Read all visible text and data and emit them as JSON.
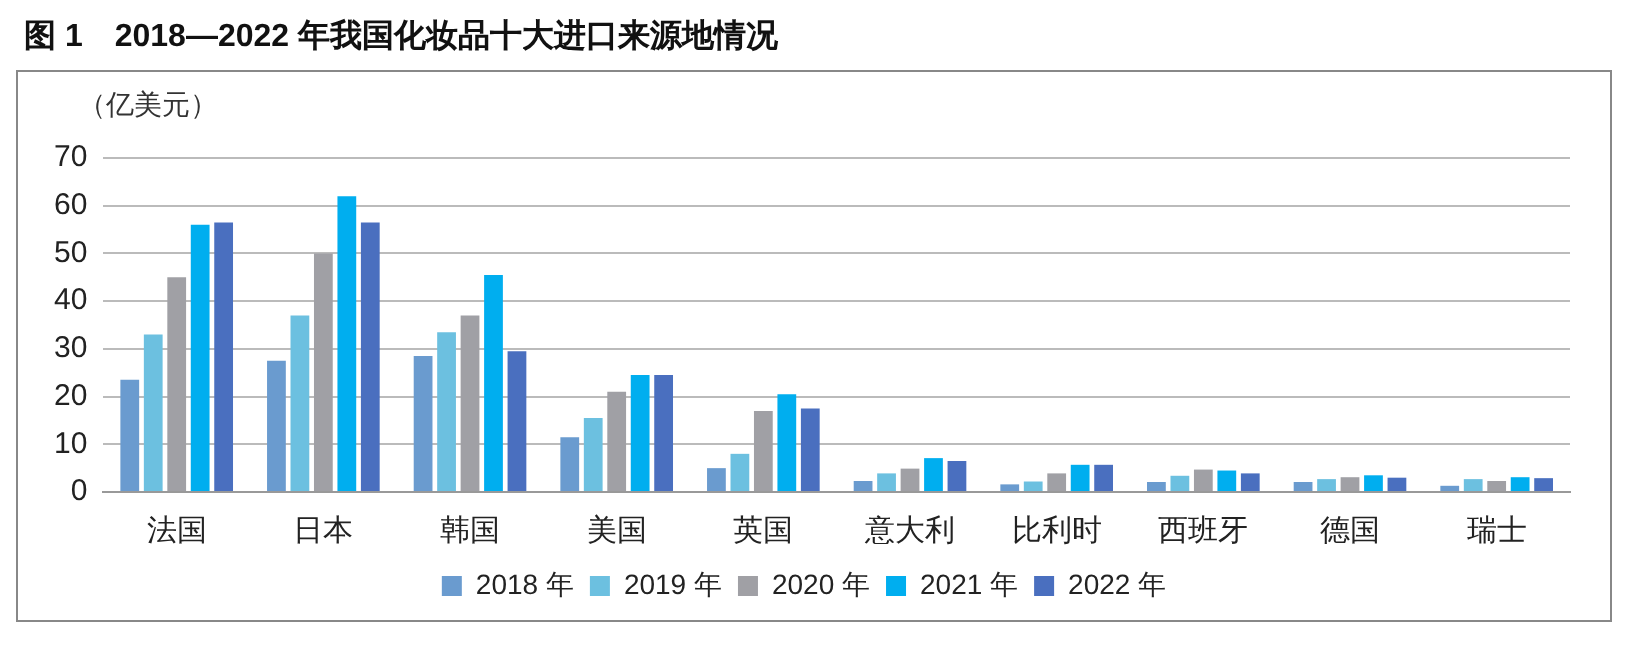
{
  "chart_data": {
    "type": "bar",
    "title": "图 1　2018—2022 年我国化妆品十大进口来源地情况",
    "ylabel": "（亿美元）",
    "categories": [
      "法国",
      "日本",
      "韩国",
      "美国",
      "英国",
      "意大利",
      "比利时",
      "西班牙",
      "德国",
      "瑞士"
    ],
    "series": [
      {
        "name": "2018 年",
        "color": "#6a9bcf",
        "values": [
          23.5,
          27.5,
          28.5,
          11.5,
          5,
          2.3,
          1.6,
          2.1,
          2.1,
          1.3
        ]
      },
      {
        "name": "2019 年",
        "color": "#6cc0e0",
        "values": [
          33,
          37,
          33.5,
          15.5,
          8,
          3.9,
          2.2,
          3.4,
          2.7,
          2.7
        ]
      },
      {
        "name": "2020 年",
        "color": "#a0a0a5",
        "values": [
          45,
          50,
          37,
          21,
          17,
          4.9,
          3.9,
          4.7,
          3.1,
          2.3
        ]
      },
      {
        "name": "2021 年",
        "color": "#00aeef",
        "values": [
          56,
          62,
          45.5,
          24.5,
          20.5,
          7.1,
          5.7,
          4.5,
          3.5,
          3.1
        ]
      },
      {
        "name": "2022 年",
        "color": "#4a6fbf",
        "values": [
          56.5,
          56.5,
          29.5,
          24.5,
          17.5,
          6.5,
          5.7,
          3.9,
          3.0,
          2.9
        ]
      }
    ],
    "ylim": [
      0,
      70
    ],
    "yticks": [
      0,
      10,
      20,
      30,
      40,
      50,
      60,
      70
    ],
    "grid": "y",
    "legend": "bottom"
  }
}
